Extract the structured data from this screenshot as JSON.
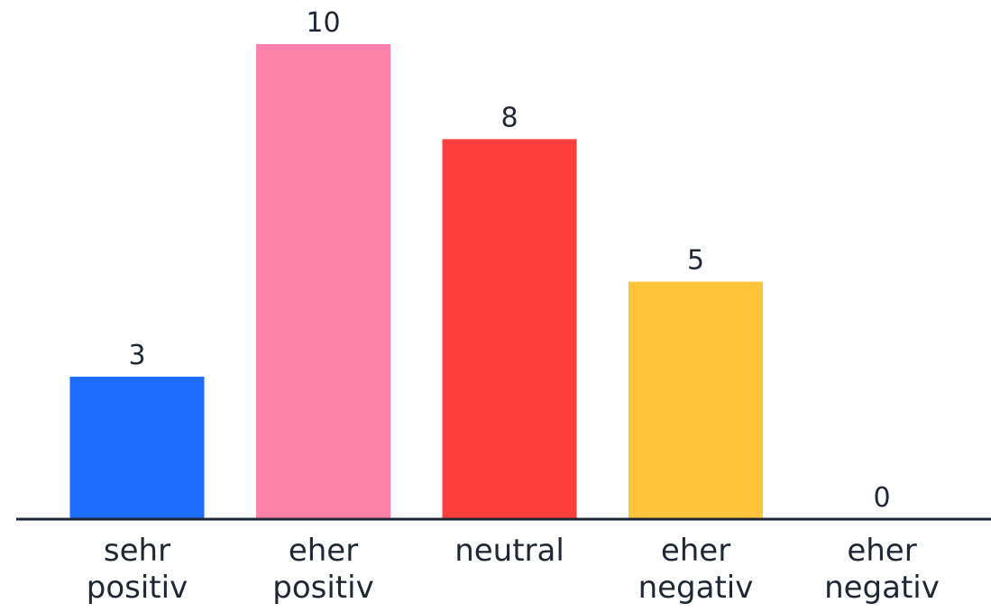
{
  "chart_data": {
    "type": "bar",
    "categories": [
      [
        "sehr",
        "positiv"
      ],
      [
        "eher",
        "positiv"
      ],
      [
        "neutral"
      ],
      [
        "eher",
        "negativ"
      ],
      [
        "eher",
        "negativ"
      ]
    ],
    "values": [
      3,
      10,
      8,
      5,
      0
    ],
    "colors": [
      "#1e6bff",
      "#ff80a8",
      "#ff3e3e",
      "#ffc43a",
      "#ffffff"
    ],
    "ylim": [
      0,
      10
    ],
    "grid": false,
    "legend": "none",
    "title": "",
    "xlabel": "",
    "ylabel": ""
  }
}
